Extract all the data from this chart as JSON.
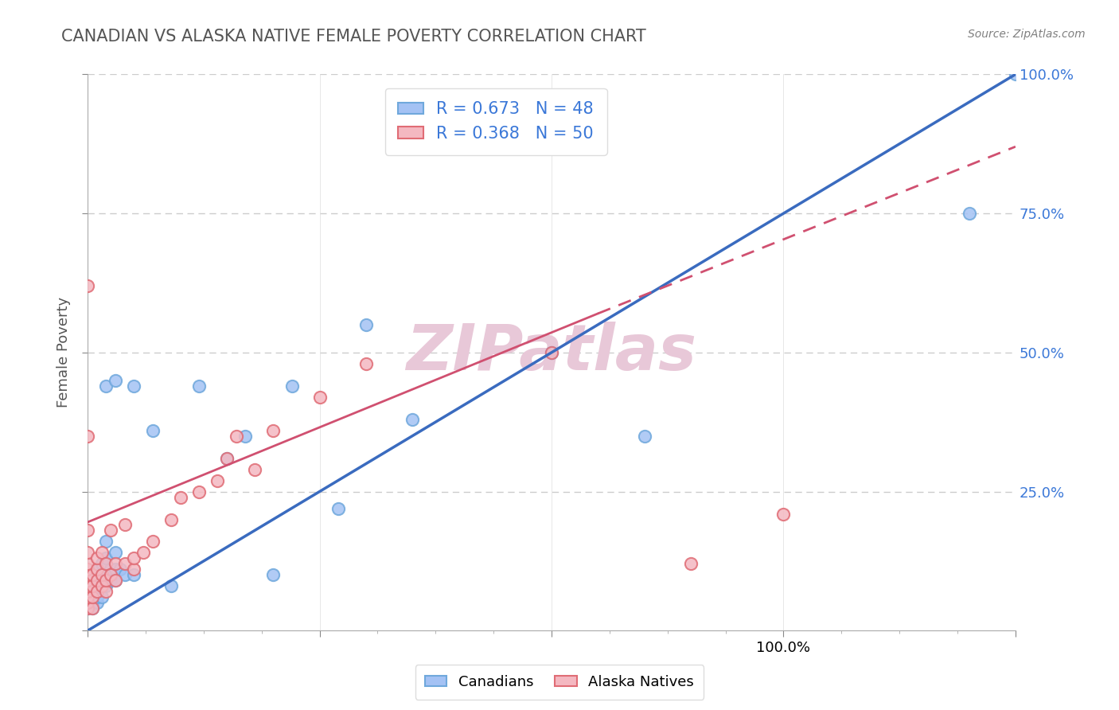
{
  "title": "CANADIAN VS ALASKA NATIVE FEMALE POVERTY CORRELATION CHART",
  "source_text": "Source: ZipAtlas.com",
  "ylabel": "Female Poverty",
  "xlim": [
    0.0,
    1.0
  ],
  "ylim": [
    0.0,
    1.0
  ],
  "canadians_R": 0.673,
  "canadians_N": 48,
  "alaska_R": 0.368,
  "alaska_N": 50,
  "blue_scatter_color": "#a4c2f4",
  "blue_scatter_edge": "#6fa8dc",
  "pink_scatter_color": "#f4b8c1",
  "pink_scatter_edge": "#e06c75",
  "blue_line_color": "#3a6bbf",
  "pink_line_color": "#d05070",
  "legend_text_color": "#3b78d8",
  "right_tick_color": "#3b78d8",
  "watermark_color": "#e8c8d8",
  "title_color": "#555555",
  "grid_color": "#cccccc",
  "blue_line_start_x": 0.0,
  "blue_line_start_y": 0.0,
  "blue_line_end_x": 1.0,
  "blue_line_end_y": 1.0,
  "pink_line_solid_start_x": 0.0,
  "pink_line_solid_start_y": 0.195,
  "pink_line_solid_end_x": 0.55,
  "pink_line_solid_end_y": 0.57,
  "pink_line_dash_start_x": 0.55,
  "pink_line_dash_start_y": 0.57,
  "pink_line_dash_end_x": 1.0,
  "pink_line_dash_end_y": 0.87,
  "canadians_x": [
    0.0,
    0.0,
    0.0,
    0.0,
    0.0,
    0.0,
    0.005,
    0.005,
    0.005,
    0.005,
    0.01,
    0.01,
    0.01,
    0.01,
    0.01,
    0.015,
    0.015,
    0.015,
    0.015,
    0.02,
    0.02,
    0.02,
    0.025,
    0.025,
    0.03,
    0.03,
    0.03,
    0.035,
    0.04,
    0.05,
    0.05,
    0.07,
    0.09,
    0.12,
    0.15,
    0.17,
    0.2,
    0.22,
    0.27,
    0.3,
    0.35,
    0.5,
    0.6,
    0.95,
    1.0,
    0.02,
    0.02,
    0.03
  ],
  "canadians_y": [
    0.04,
    0.05,
    0.06,
    0.07,
    0.08,
    0.1,
    0.04,
    0.05,
    0.06,
    0.08,
    0.05,
    0.06,
    0.07,
    0.09,
    0.11,
    0.06,
    0.08,
    0.1,
    0.12,
    0.08,
    0.1,
    0.13,
    0.09,
    0.11,
    0.09,
    0.11,
    0.14,
    0.11,
    0.1,
    0.1,
    0.44,
    0.36,
    0.08,
    0.44,
    0.31,
    0.35,
    0.1,
    0.44,
    0.22,
    0.55,
    0.38,
    0.5,
    0.35,
    0.75,
    1.0,
    0.16,
    0.44,
    0.45
  ],
  "alaska_x": [
    0.0,
    0.0,
    0.0,
    0.0,
    0.0,
    0.0,
    0.0,
    0.0,
    0.0,
    0.0,
    0.0,
    0.0,
    0.0,
    0.005,
    0.005,
    0.005,
    0.005,
    0.01,
    0.01,
    0.01,
    0.01,
    0.015,
    0.015,
    0.015,
    0.02,
    0.02,
    0.02,
    0.025,
    0.025,
    0.03,
    0.03,
    0.04,
    0.04,
    0.05,
    0.05,
    0.06,
    0.07,
    0.09,
    0.1,
    0.12,
    0.14,
    0.15,
    0.16,
    0.18,
    0.2,
    0.25,
    0.3,
    0.5,
    0.65,
    0.75
  ],
  "alaska_y": [
    0.04,
    0.05,
    0.06,
    0.07,
    0.08,
    0.09,
    0.1,
    0.11,
    0.12,
    0.14,
    0.18,
    0.35,
    0.62,
    0.04,
    0.06,
    0.08,
    0.1,
    0.07,
    0.09,
    0.11,
    0.13,
    0.08,
    0.1,
    0.14,
    0.07,
    0.09,
    0.12,
    0.1,
    0.18,
    0.09,
    0.12,
    0.12,
    0.19,
    0.11,
    0.13,
    0.14,
    0.16,
    0.2,
    0.24,
    0.25,
    0.27,
    0.31,
    0.35,
    0.29,
    0.36,
    0.42,
    0.48,
    0.5,
    0.12,
    0.21
  ]
}
